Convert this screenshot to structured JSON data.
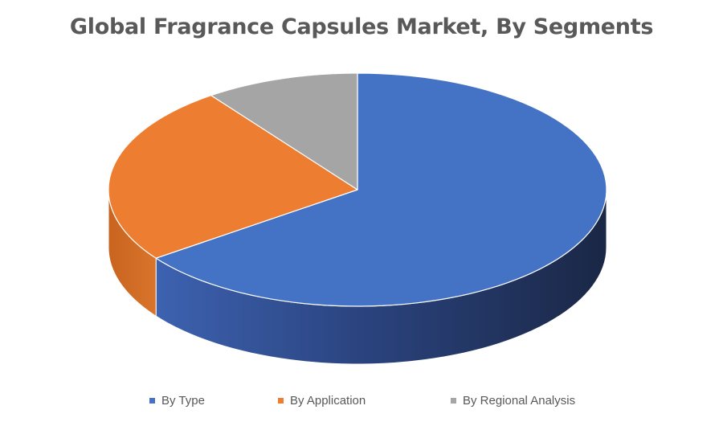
{
  "chart_data": {
    "type": "pie",
    "title": "Global Fragrance Capsules Market, By Segments",
    "slices": [
      {
        "label": "By Type",
        "value": 65,
        "color": "#4472C4",
        "side_dark": "#1F2F55",
        "side_light": "#3A5EA8"
      },
      {
        "label": "By Application",
        "value": 25,
        "color": "#ED7D31",
        "side_dark": "#B85A1C",
        "side_light": "#D66E29"
      },
      {
        "label": "By Regional Analysis",
        "value": 10,
        "color": "#A5A5A5",
        "side_dark": "#7A7A7A",
        "side_light": "#959595"
      }
    ],
    "legend_position": "bottom"
  }
}
